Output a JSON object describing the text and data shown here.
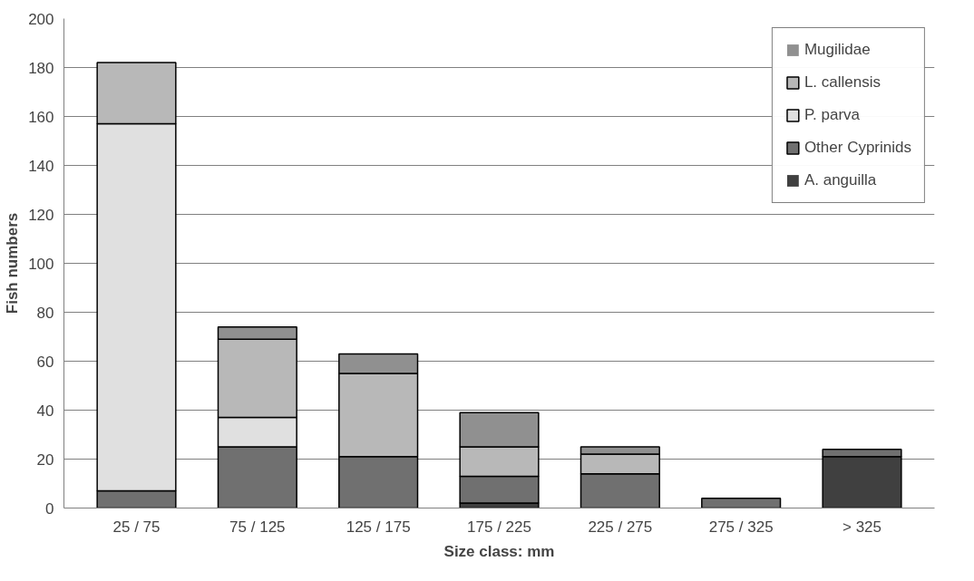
{
  "chart_data": {
    "type": "bar",
    "stacked": true,
    "xlabel": "Size class: mm",
    "ylabel": "Fish numbers",
    "categories": [
      "25 / 75",
      "75 / 125",
      "125 / 175",
      "175 / 225",
      "225 / 275",
      "275 / 325",
      "> 325"
    ],
    "series": [
      {
        "name": "A. anguilla",
        "color": "#404040",
        "values": [
          0,
          0,
          0,
          2,
          0,
          0,
          21
        ]
      },
      {
        "name": "Other Cyprinids",
        "color": "#707070",
        "values": [
          7,
          25,
          21,
          11,
          14,
          4,
          3
        ]
      },
      {
        "name": "P. parva",
        "color": "#e0e0e0",
        "values": [
          150,
          12,
          0,
          0,
          0,
          0,
          0
        ]
      },
      {
        "name": "L. callensis",
        "color": "#b8b8b8",
        "values": [
          25,
          32,
          34,
          12,
          8,
          0,
          0
        ]
      },
      {
        "name": "Mugilidae",
        "color": "#909090",
        "values": [
          0,
          5,
          8,
          14,
          3,
          0,
          0
        ]
      }
    ],
    "ylim": [
      0,
      200
    ],
    "yticks": [
      0,
      20,
      40,
      60,
      80,
      100,
      120,
      140,
      160,
      180,
      200
    ],
    "grid": "y",
    "legend": "top right"
  }
}
